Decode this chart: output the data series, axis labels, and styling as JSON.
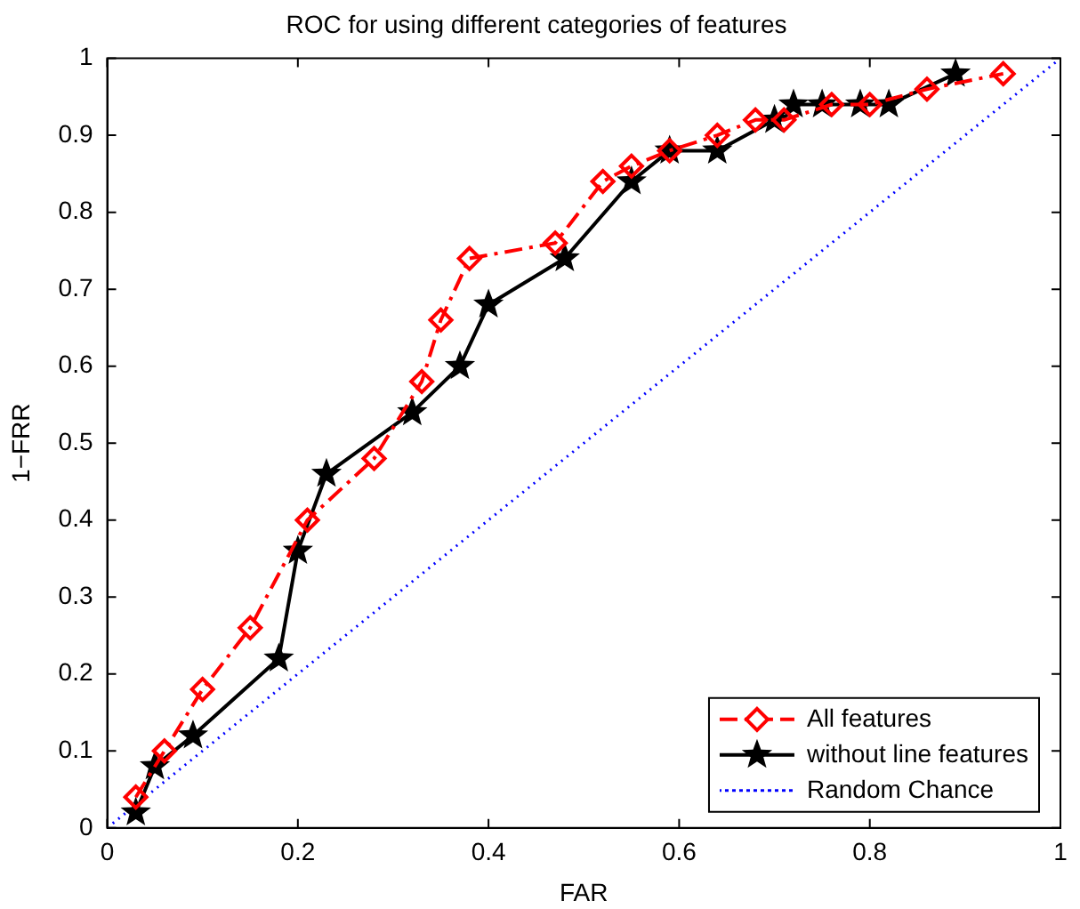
{
  "chart_data": {
    "type": "line",
    "title": "ROC for using different categories of features",
    "xlabel": "FAR",
    "ylabel": "1−FRR",
    "xlim": [
      0,
      1
    ],
    "ylim": [
      0,
      1
    ],
    "xticks": [
      0,
      0.2,
      0.4,
      0.6,
      0.8,
      1
    ],
    "yticks": [
      0,
      0.1,
      0.2,
      0.3,
      0.4,
      0.5,
      0.6,
      0.7,
      0.8,
      0.9,
      1
    ],
    "grid": false,
    "legend": "bottom right",
    "series": [
      {
        "name": "All features",
        "color": "#ff0000",
        "marker": "diamond",
        "line_style": "dashed",
        "x": [
          0.03,
          0.06,
          0.1,
          0.15,
          0.21,
          0.28,
          0.33,
          0.35,
          0.38,
          0.47,
          0.52,
          0.55,
          0.59,
          0.64,
          0.68,
          0.71,
          0.76,
          0.8,
          0.86,
          0.94
        ],
        "values": [
          0.04,
          0.1,
          0.18,
          0.26,
          0.4,
          0.48,
          0.58,
          0.66,
          0.74,
          0.76,
          0.84,
          0.86,
          0.88,
          0.9,
          0.92,
          0.92,
          0.94,
          0.94,
          0.96,
          0.98
        ]
      },
      {
        "name": "without line features",
        "color": "#000000",
        "marker": "star",
        "line_style": "solid",
        "x": [
          0.03,
          0.05,
          0.09,
          0.18,
          0.2,
          0.23,
          0.32,
          0.37,
          0.4,
          0.48,
          0.55,
          0.59,
          0.64,
          0.7,
          0.72,
          0.75,
          0.79,
          0.82,
          0.89
        ],
        "values": [
          0.02,
          0.08,
          0.12,
          0.22,
          0.36,
          0.46,
          0.54,
          0.6,
          0.68,
          0.74,
          0.84,
          0.88,
          0.88,
          0.92,
          0.94,
          0.94,
          0.94,
          0.94,
          0.98
        ]
      },
      {
        "name": "Random Chance",
        "color": "#0000ff",
        "marker": "none",
        "line_style": "dotted",
        "x": [
          0,
          1
        ],
        "values": [
          0,
          1
        ]
      }
    ]
  }
}
